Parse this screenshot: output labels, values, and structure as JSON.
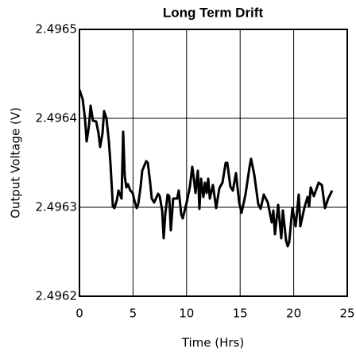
{
  "chart_data": {
    "type": "line",
    "title": "Long Term Drift",
    "x_label": "Time (Hrs)",
    "y_label": "Output Voltage (V)",
    "xlim": [
      0,
      25
    ],
    "ylim": [
      2.4962,
      2.4965
    ],
    "xticks": [
      0,
      5,
      10,
      15,
      20,
      25
    ],
    "yticks": [
      2.4962,
      2.4963,
      2.4964,
      2.4965
    ],
    "grid": true,
    "x": [
      0,
      0.3,
      0.52,
      0.67,
      0.89,
      1.04,
      1.26,
      1.56,
      1.78,
      1.93,
      2.15,
      2.3,
      2.52,
      2.74,
      2.89,
      3.12,
      3.26,
      3.49,
      3.64,
      3.93,
      4.08,
      4.23,
      4.38,
      4.53,
      4.75,
      4.97,
      5.12,
      5.34,
      5.49,
      5.71,
      5.86,
      6.23,
      6.38,
      6.6,
      6.75,
      6.97,
      7.34,
      7.49,
      7.72,
      7.86,
      8.01,
      8.23,
      8.38,
      8.53,
      8.75,
      9.12,
      9.27,
      9.5,
      9.64,
      10.01,
      10.31,
      10.53,
      10.68,
      10.83,
      11.05,
      11.2,
      11.35,
      11.57,
      11.72,
      11.87,
      12.02,
      12.17,
      12.46,
      12.76,
      13.06,
      13.35,
      13.65,
      13.8,
      14.09,
      14.32,
      14.61,
      14.91,
      15.13,
      15.5,
      15.88,
      16.02,
      16.32,
      16.69,
      16.91,
      17.21,
      17.58,
      17.95,
      18.1,
      18.25,
      18.55,
      18.84,
      18.99,
      19.29,
      19.44,
      19.58,
      19.88,
      20.18,
      20.47,
      20.62,
      20.99,
      21.29,
      21.44,
      21.59,
      21.88,
      22.33,
      22.63,
      22.92,
      23.22,
      23.59
    ],
    "series": [
      {
        "color": "#000000",
        "values": [
          2.4964322,
          2.4964215,
          2.4963991,
          2.4963741,
          2.496392,
          2.4964143,
          2.4963974,
          2.4963965,
          2.4963831,
          2.4963679,
          2.4963831,
          2.4964081,
          2.4964,
          2.496375,
          2.49635,
          2.4963009,
          2.4962991,
          2.496308,
          2.4963188,
          2.4963098,
          2.4963849,
          2.4963348,
          2.4963223,
          2.4963259,
          2.4963188,
          2.4963161,
          2.496308,
          2.4962991,
          2.4963036,
          2.4963232,
          2.4963411,
          2.4963518,
          2.49635,
          2.4963277,
          2.4963098,
          2.4963054,
          2.4963152,
          2.4963125,
          2.4962964,
          2.4962652,
          2.496292,
          2.4963143,
          2.4963125,
          2.4962741,
          2.4963098,
          2.4963098,
          2.4963188,
          2.496292,
          2.4962875,
          2.4963054,
          2.4963232,
          2.4963456,
          2.4963322,
          2.4963161,
          2.4963411,
          2.4962982,
          2.4963322,
          2.4963116,
          2.4963277,
          2.4963161,
          2.4963322,
          2.4963098,
          2.496325,
          2.4962991,
          2.4963214,
          2.4963277,
          2.49635,
          2.49635,
          2.4963232,
          2.4963188,
          2.4963384,
          2.4963054,
          2.4962938,
          2.4963143,
          2.4963456,
          2.4963545,
          2.4963366,
          2.4963036,
          2.4962982,
          2.4963143,
          2.4963054,
          2.496283,
          2.4962964,
          2.4962697,
          2.4963027,
          2.4962652,
          2.4962964,
          2.4962625,
          2.4962563,
          2.4962607,
          2.4962991,
          2.4962786,
          2.4963143,
          2.4962786,
          2.4962991,
          2.4963116,
          2.4963009,
          2.4963223,
          2.4963125,
          2.4963277,
          2.496325,
          2.4962991,
          2.4963098,
          2.4963188
        ]
      }
    ]
  }
}
